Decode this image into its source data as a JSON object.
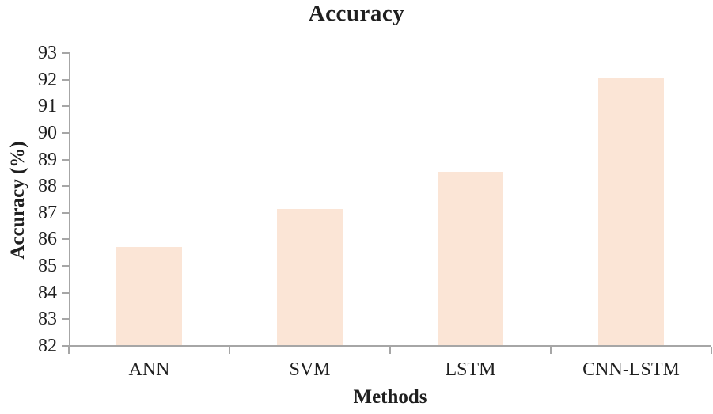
{
  "chart_data": {
    "type": "bar",
    "title": "Accuracy",
    "xlabel": "Methods",
    "ylabel": "Accuracy (%)",
    "categories": [
      "ANN",
      "SVM",
      "LSTM",
      "CNN-LSTM"
    ],
    "values": [
      85.7,
      87.1,
      88.5,
      92.05
    ],
    "ylim": [
      82,
      93
    ],
    "ytick_step": 1,
    "ytick_labels": [
      "82",
      "83",
      "84",
      "85",
      "86",
      "87",
      "88",
      "89",
      "90",
      "91",
      "92",
      "93"
    ],
    "grid": false,
    "legend": false,
    "bar_color": "#fbe5d6",
    "axis_color": "#a6a6a6",
    "text_color": "#1f1f1f"
  }
}
